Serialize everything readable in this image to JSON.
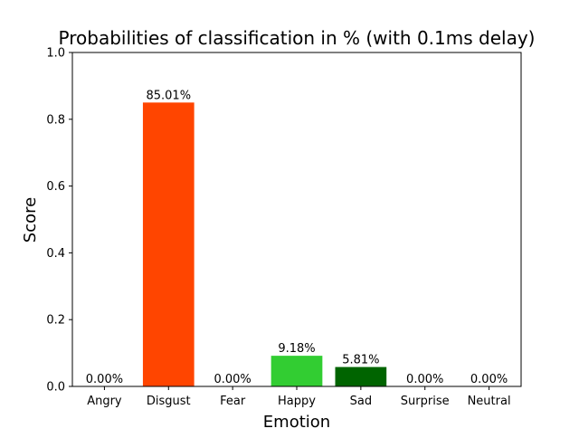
{
  "chart_data": {
    "type": "bar",
    "title": "Probabilities of classification in % (with 0.1ms delay)",
    "xlabel": "Emotion",
    "ylabel": "Score",
    "categories": [
      "Angry",
      "Disgust",
      "Fear",
      "Happy",
      "Sad",
      "Surprise",
      "Neutral"
    ],
    "values": [
      0.0,
      0.8501,
      0.0,
      0.0918,
      0.0581,
      0.0,
      0.0
    ],
    "data_labels": [
      "0.00%",
      "85.01%",
      "0.00%",
      "9.18%",
      "5.81%",
      "0.00%",
      "0.00%"
    ],
    "colors": [
      "#d62728",
      "#ff4500",
      "#9467bd",
      "#32cd32",
      "#006400",
      "#ff7f0e",
      "#7f7f7f"
    ],
    "ylim": [
      0,
      1.0
    ],
    "yticks": [
      0.0,
      0.2,
      0.4,
      0.6,
      0.8,
      1.0
    ],
    "ytick_labels": [
      "0.0",
      "0.2",
      "0.4",
      "0.6",
      "0.8",
      "1.0"
    ],
    "grid": false,
    "legend": "none"
  }
}
